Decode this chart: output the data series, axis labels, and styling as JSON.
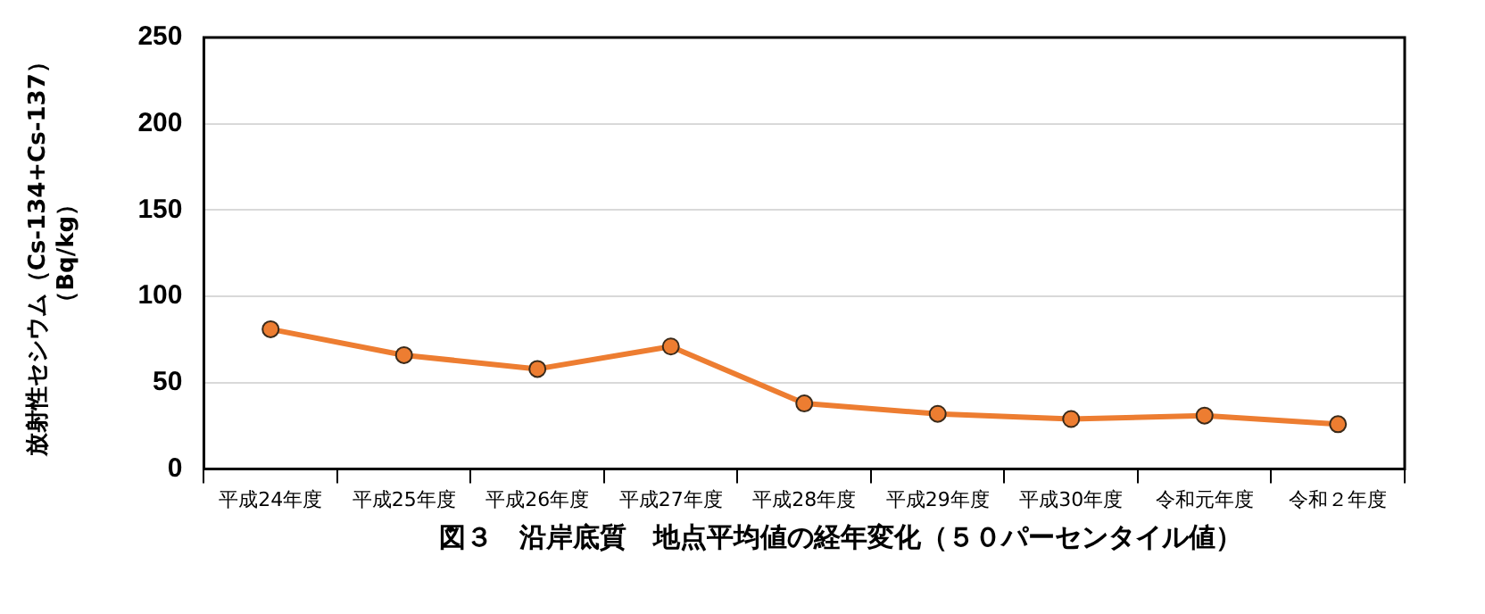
{
  "chart_data": {
    "type": "line",
    "title": "図３　沿岸底質　地点平均値の経年変化（５０パーセンタイル値）",
    "ylabel": "放射性セシウム（Cs-134+Cs-137）（Bq/kg）",
    "categories": [
      "平成24年度",
      "平成25年度",
      "平成26年度",
      "平成27年度",
      "平成28年度",
      "平成29年度",
      "平成30年度",
      "令和元年度",
      "令和２年度"
    ],
    "series": [
      {
        "color": "#ed7d31",
        "values": [
          81,
          66,
          58,
          71,
          38,
          32,
          29,
          31,
          26
        ]
      }
    ],
    "ylim": [
      0,
      250
    ],
    "yticks": [
      0,
      50,
      100,
      150,
      200,
      250
    ],
    "grid": "y",
    "legend": false,
    "marker": "circle",
    "line_style": "solid"
  }
}
